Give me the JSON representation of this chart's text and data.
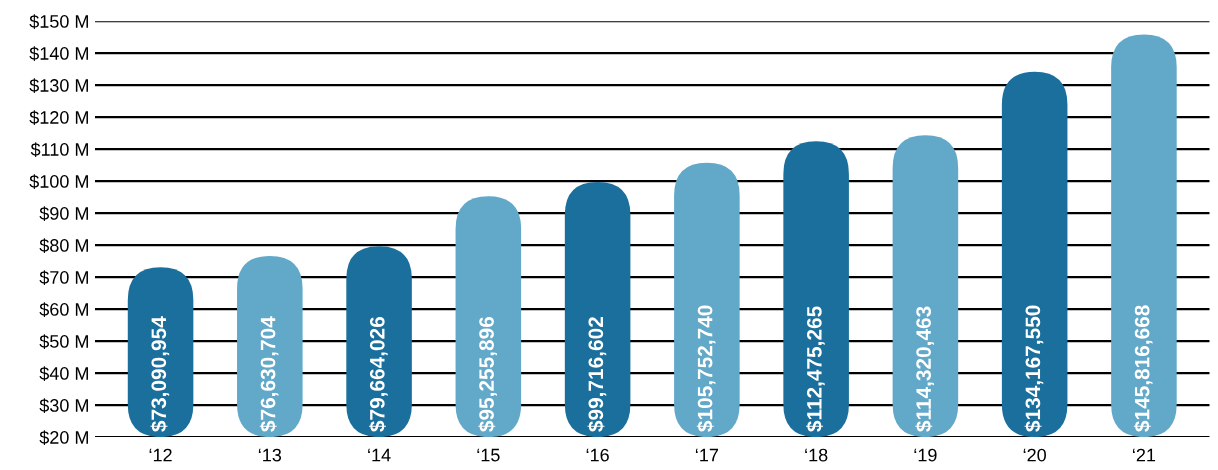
{
  "chart_data": {
    "type": "bar",
    "categories": [
      "‘12",
      "‘13",
      "‘14",
      "‘15",
      "‘16",
      "‘17",
      "‘18",
      "‘19",
      "‘20",
      "‘21"
    ],
    "values": [
      73090954,
      76630704,
      79664026,
      95255896,
      99716602,
      105752740,
      112475265,
      114320463,
      134167550,
      145816668
    ],
    "value_labels": [
      "$73,090,954",
      "$76,630,704",
      "$79,664,026",
      "$95,255,896",
      "$99,716,602",
      "$105,752,740",
      "$112,475,265",
      "$114,320,463",
      "$134,167,550",
      "$145,816,668"
    ],
    "colors": [
      "#1a6f9c",
      "#62a8c8",
      "#1a6f9c",
      "#62a8c8",
      "#1a6f9c",
      "#62a8c8",
      "#1a6f9c",
      "#62a8c8",
      "#1a6f9c",
      "#62a8c8"
    ],
    "ylim": [
      20000000,
      150000000
    ],
    "yticks": [
      {
        "value": 20000000,
        "label": "$20 M"
      },
      {
        "value": 30000000,
        "label": "$30 M"
      },
      {
        "value": 40000000,
        "label": "$40 M"
      },
      {
        "value": 50000000,
        "label": "$50 M"
      },
      {
        "value": 60000000,
        "label": "$60 M"
      },
      {
        "value": 70000000,
        "label": "$70 M"
      },
      {
        "value": 80000000,
        "label": "$80 M"
      },
      {
        "value": 90000000,
        "label": "$90 M"
      },
      {
        "value": 100000000,
        "label": "$100 M"
      },
      {
        "value": 110000000,
        "label": "$110 M"
      },
      {
        "value": 120000000,
        "label": "$120 M"
      },
      {
        "value": 130000000,
        "label": "$130 M"
      },
      {
        "value": 140000000,
        "label": "$140 M"
      },
      {
        "value": 150000000,
        "label": "$150 M"
      }
    ],
    "grid": "y"
  }
}
